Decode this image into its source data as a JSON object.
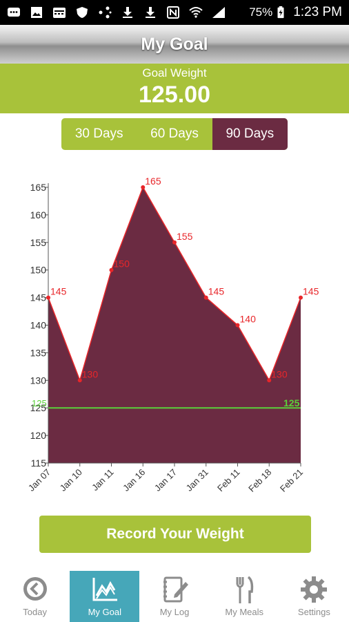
{
  "status_bar": {
    "battery": "75%",
    "time": "1:23 PM",
    "left_icons": [
      "messages-icon",
      "gallery-icon",
      "calendar-icon",
      "shield-icon",
      "share-icon",
      "download-icon",
      "download-icon",
      "nfc-icon",
      "wifi-icon",
      "signal-icon"
    ]
  },
  "header": {
    "title": "My Goal"
  },
  "goal": {
    "label": "Goal Weight",
    "value": "125.00"
  },
  "range_tabs": [
    {
      "label": "30 Days",
      "active": false
    },
    {
      "label": "60 Days",
      "active": false
    },
    {
      "label": "90 Days",
      "active": true
    }
  ],
  "chart_data": {
    "type": "area",
    "categories": [
      "Jan 07",
      "Jan 10",
      "Jan 11",
      "Jan 16",
      "Jan 17",
      "Jan 31",
      "Feb 11",
      "Feb 18",
      "Feb 21"
    ],
    "series": [
      {
        "values": [
          145,
          130,
          150,
          165,
          155,
          145,
          140,
          130,
          145
        ]
      }
    ],
    "data_labels": [
      "145",
      "130",
      "150",
      "165",
      "155",
      "145",
      "140",
      "130",
      "145"
    ],
    "goal_line": {
      "value": 125,
      "label": "125"
    },
    "ylim": [
      115,
      165
    ],
    "yticks": [
      115,
      120,
      125,
      130,
      135,
      140,
      145,
      150,
      155,
      160,
      165
    ],
    "xlabel": "",
    "ylabel": "",
    "colors": {
      "fill": "#6b2b42",
      "line": "#e8262a",
      "goal": "#5bd13a",
      "labels": "#e8262a"
    },
    "grid": false
  },
  "record_button": {
    "label": "Record Your Weight"
  },
  "bottom_nav": [
    {
      "label": "Today",
      "icon": "today-icon",
      "active": false
    },
    {
      "label": "My Goal",
      "icon": "chart-icon",
      "active": true
    },
    {
      "label": "My Log",
      "icon": "log-icon",
      "active": false
    },
    {
      "label": "My Meals",
      "icon": "fork-knife-icon",
      "active": false
    },
    {
      "label": "Settings",
      "icon": "gear-icon",
      "active": false
    }
  ]
}
